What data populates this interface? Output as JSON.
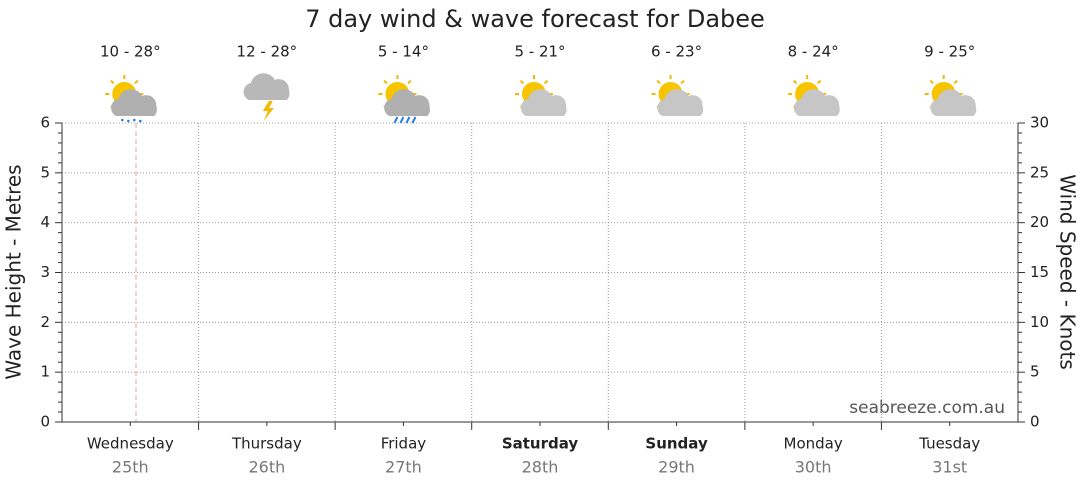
{
  "chart_data": {
    "type": "line",
    "title": "7 day wind & wave forecast for Dabee",
    "categories": [
      "Wednesday",
      "Thursday",
      "Friday",
      "Saturday",
      "Sunday",
      "Monday",
      "Tuesday"
    ],
    "dates": [
      "25th",
      "26th",
      "27th",
      "28th",
      "29th",
      "30th",
      "31st"
    ],
    "temperatures": [
      "10 - 28°",
      "12 - 28°",
      "5 - 14°",
      "5 - 21°",
      "6 - 23°",
      "8 - 24°",
      "9 - 25°"
    ],
    "ylabel": "Wave Height - Metres",
    "y2label": "Wind Speed - Knots",
    "ylim": [
      0,
      6
    ],
    "yticks": [
      0,
      1,
      2,
      3,
      4,
      5,
      6
    ],
    "y2lim": [
      0,
      30
    ],
    "y2ticks": [
      0,
      5,
      10,
      15,
      20,
      25,
      30
    ],
    "grid": true,
    "watermark": "seabreeze.com.au"
  }
}
